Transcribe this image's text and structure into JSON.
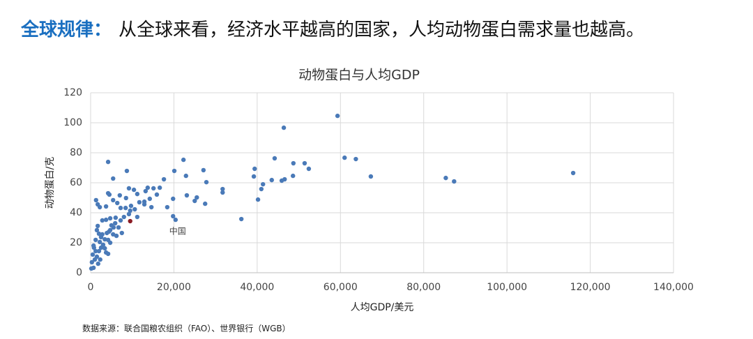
{
  "header": {
    "label": "全球规律：",
    "text": "从全球来看，经济水平越高的国家，人均动物蛋白需求量也越高。"
  },
  "chart_data": {
    "type": "scatter",
    "title": "动物蛋白与人均GDP",
    "xlabel": "人均GDP/美元",
    "ylabel": "动物蛋白/克",
    "color": "#4a7ab8",
    "grid": true,
    "xlim": [
      0,
      140000
    ],
    "ylim": [
      0,
      120
    ],
    "xticks": [
      0,
      {
        "value": 20000,
        "label": "20,000"
      },
      {
        "value": 40000,
        "label": "40,000"
      },
      {
        "value": 60000,
        "label": "60,000"
      },
      {
        "value": 80000,
        "label": "80,000"
      },
      {
        "value": 100000,
        "label": "100,000"
      },
      {
        "value": 120000,
        "label": "120,000"
      },
      {
        "value": 140000,
        "label": "140,000"
      }
    ],
    "yticks": [
      0,
      20,
      40,
      60,
      80,
      100,
      120
    ],
    "x": [
      59300,
      46400,
      115900,
      85300,
      87300,
      61000,
      63700,
      67300,
      44200,
      22300,
      27100,
      4200,
      8700,
      20100,
      39400,
      48700,
      51400,
      52400,
      48600,
      39200,
      22900,
      27800,
      45900,
      43500,
      41400,
      41000,
      46600,
      40200,
      36200,
      31700,
      31700,
      27500,
      25500,
      25000,
      23100,
      19800,
      18400,
      19800,
      20400,
      17600,
      16600,
      15100,
      13700,
      15900,
      14200,
      13200,
      12900,
      11200,
      11700,
      10400,
      9200,
      8500,
      9700,
      9500,
      8400,
      7200,
      6400,
      7000,
      5400,
      4500,
      4200,
      5400,
      1700,
      2200,
      3700,
      2800,
      3700,
      4700,
      6000,
      7200,
      5900,
      4700,
      3900,
      5000,
      3400,
      2500,
      2000,
      1500,
      1200,
      800,
      500,
      300,
      170,
      700,
      1000,
      1500,
      2000,
      2500,
      3000,
      3700,
      4200,
      4700,
      5400,
      6200,
      7500,
      1800,
      2300,
      1200,
      700,
      2800,
      1700,
      4400,
      5500,
      6700,
      8000,
      9200,
      10600,
      11200,
      12900,
      14600,
      1300,
      4200,
      2200,
      3400
    ],
    "values": [
      104.6,
      96.7,
      66.5,
      63.2,
      60.9,
      76.7,
      75.8,
      64.2,
      76.3,
      75.3,
      68.4,
      73.9,
      67.9,
      67.9,
      69.3,
      73,
      73,
      69.3,
      64.6,
      64.2,
      64.6,
      60.4,
      61.4,
      61.8,
      59,
      55.8,
      62.3,
      48.8,
      35.8,
      55.8,
      53.5,
      46,
      50.2,
      47.9,
      51.6,
      49.3,
      43.7,
      37.7,
      35.3,
      62.3,
      56.7,
      56.3,
      56.7,
      52.1,
      49.3,
      54.4,
      47.4,
      52.5,
      47,
      55.3,
      56.3,
      49.8,
      44.6,
      41.4,
      43.2,
      43.2,
      46.5,
      51.6,
      48.4,
      52.1,
      53,
      62.8,
      45.6,
      43.7,
      44.2,
      34.9,
      35.3,
      36.3,
      36.7,
      34.9,
      33,
      28.4,
      26.5,
      31.6,
      22.3,
      23.7,
      26,
      28.4,
      21.9,
      16.7,
      12.1,
      7,
      2.8,
      3.3,
      8.8,
      10.7,
      14.4,
      16.7,
      18.6,
      13.5,
      21.9,
      20,
      25.6,
      24.6,
      26.5,
      6,
      8.8,
      14.4,
      18.1,
      25.6,
      31.2,
      27.4,
      30.2,
      30.2,
      37.2,
      39.1,
      42.3,
      37.2,
      45.6,
      43.7,
      48.4,
      12.6,
      20.5,
      16.3
    ],
    "annotations": [
      {
        "text": "中国",
        "x": 9500,
        "y": 34.4,
        "color": "#8b1c24"
      }
    ]
  },
  "source": "数据来源：联合国粮农组织（FAO）、世界银行（WGB）"
}
